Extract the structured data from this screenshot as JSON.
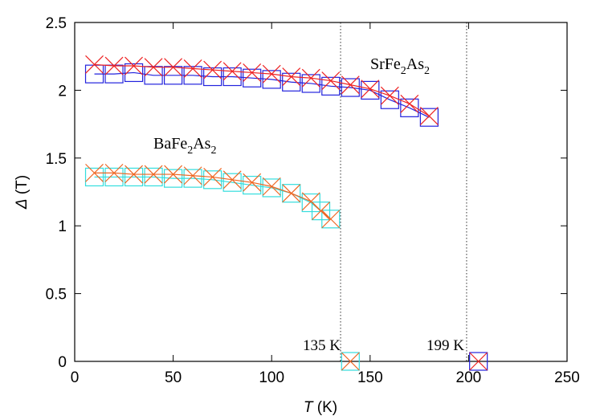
{
  "chart_data": {
    "type": "scatter",
    "xlabel": "T (K)",
    "xlabel_var": "T",
    "xlabel_unit": " (K)",
    "ylabel": "Δ (T)",
    "ylabel_var": "Δ",
    "ylabel_unit": " (T)",
    "xlim": [
      0,
      250
    ],
    "ylim": [
      0,
      2.5
    ],
    "xticks": [
      0,
      50,
      100,
      150,
      200,
      250
    ],
    "yticks": [
      0,
      0.5,
      1,
      1.5,
      2,
      2.5
    ],
    "xtick_labels": [
      "0",
      "50",
      "100",
      "150",
      "200",
      "250"
    ],
    "ytick_labels": [
      "0",
      "0.5",
      "1",
      "1.5",
      "2",
      "2.5"
    ],
    "grid": false,
    "legend": "none",
    "vlines": [
      {
        "x": 135,
        "label": "135 K"
      },
      {
        "x": 199,
        "label": "199 K"
      }
    ],
    "annotations": [
      {
        "base": "SrFe",
        "sub1": "2",
        "mid": "As",
        "sub2": "2",
        "text": "SrFe2As2"
      },
      {
        "base": "BaFe",
        "sub1": "2",
        "mid": "As",
        "sub2": "2",
        "text": "BaFe2As2"
      }
    ],
    "series": [
      {
        "group": "SrFe2As2",
        "marker": "square",
        "line": true,
        "color": "#2222dd",
        "x": [
          10,
          20,
          30,
          40,
          50,
          60,
          70,
          80,
          90,
          100,
          110,
          120,
          130,
          140,
          150,
          160,
          170,
          180,
          205
        ],
        "y": [
          2.12,
          2.12,
          2.13,
          2.11,
          2.11,
          2.11,
          2.1,
          2.1,
          2.09,
          2.08,
          2.06,
          2.05,
          2.03,
          2.02,
          2.0,
          1.93,
          1.87,
          1.8,
          0
        ]
      },
      {
        "group": "SrFe2As2",
        "marker": "cross",
        "line": true,
        "color": "#ee2222",
        "x": [
          10,
          20,
          30,
          40,
          50,
          60,
          70,
          80,
          90,
          100,
          110,
          120,
          130,
          140,
          150,
          160,
          170,
          180,
          205
        ],
        "y": [
          2.19,
          2.18,
          2.18,
          2.17,
          2.17,
          2.16,
          2.15,
          2.14,
          2.13,
          2.12,
          2.1,
          2.09,
          2.07,
          2.04,
          2.01,
          1.96,
          1.9,
          1.81,
          0
        ]
      },
      {
        "group": "BaFe2As2",
        "marker": "square",
        "line": true,
        "color": "#33dddd",
        "x": [
          10,
          20,
          30,
          40,
          50,
          60,
          70,
          80,
          90,
          100,
          110,
          120,
          125,
          130,
          140
        ],
        "y": [
          1.36,
          1.36,
          1.36,
          1.36,
          1.35,
          1.35,
          1.34,
          1.32,
          1.3,
          1.28,
          1.24,
          1.17,
          1.11,
          1.05,
          0
        ]
      },
      {
        "group": "BaFe2As2",
        "marker": "cross",
        "line": true,
        "color": "#ee6622",
        "x": [
          10,
          20,
          30,
          40,
          50,
          60,
          70,
          80,
          90,
          100,
          110,
          120,
          125,
          130,
          140
        ],
        "y": [
          1.39,
          1.39,
          1.38,
          1.38,
          1.38,
          1.37,
          1.36,
          1.34,
          1.32,
          1.29,
          1.24,
          1.18,
          1.11,
          1.05,
          0
        ]
      }
    ]
  }
}
